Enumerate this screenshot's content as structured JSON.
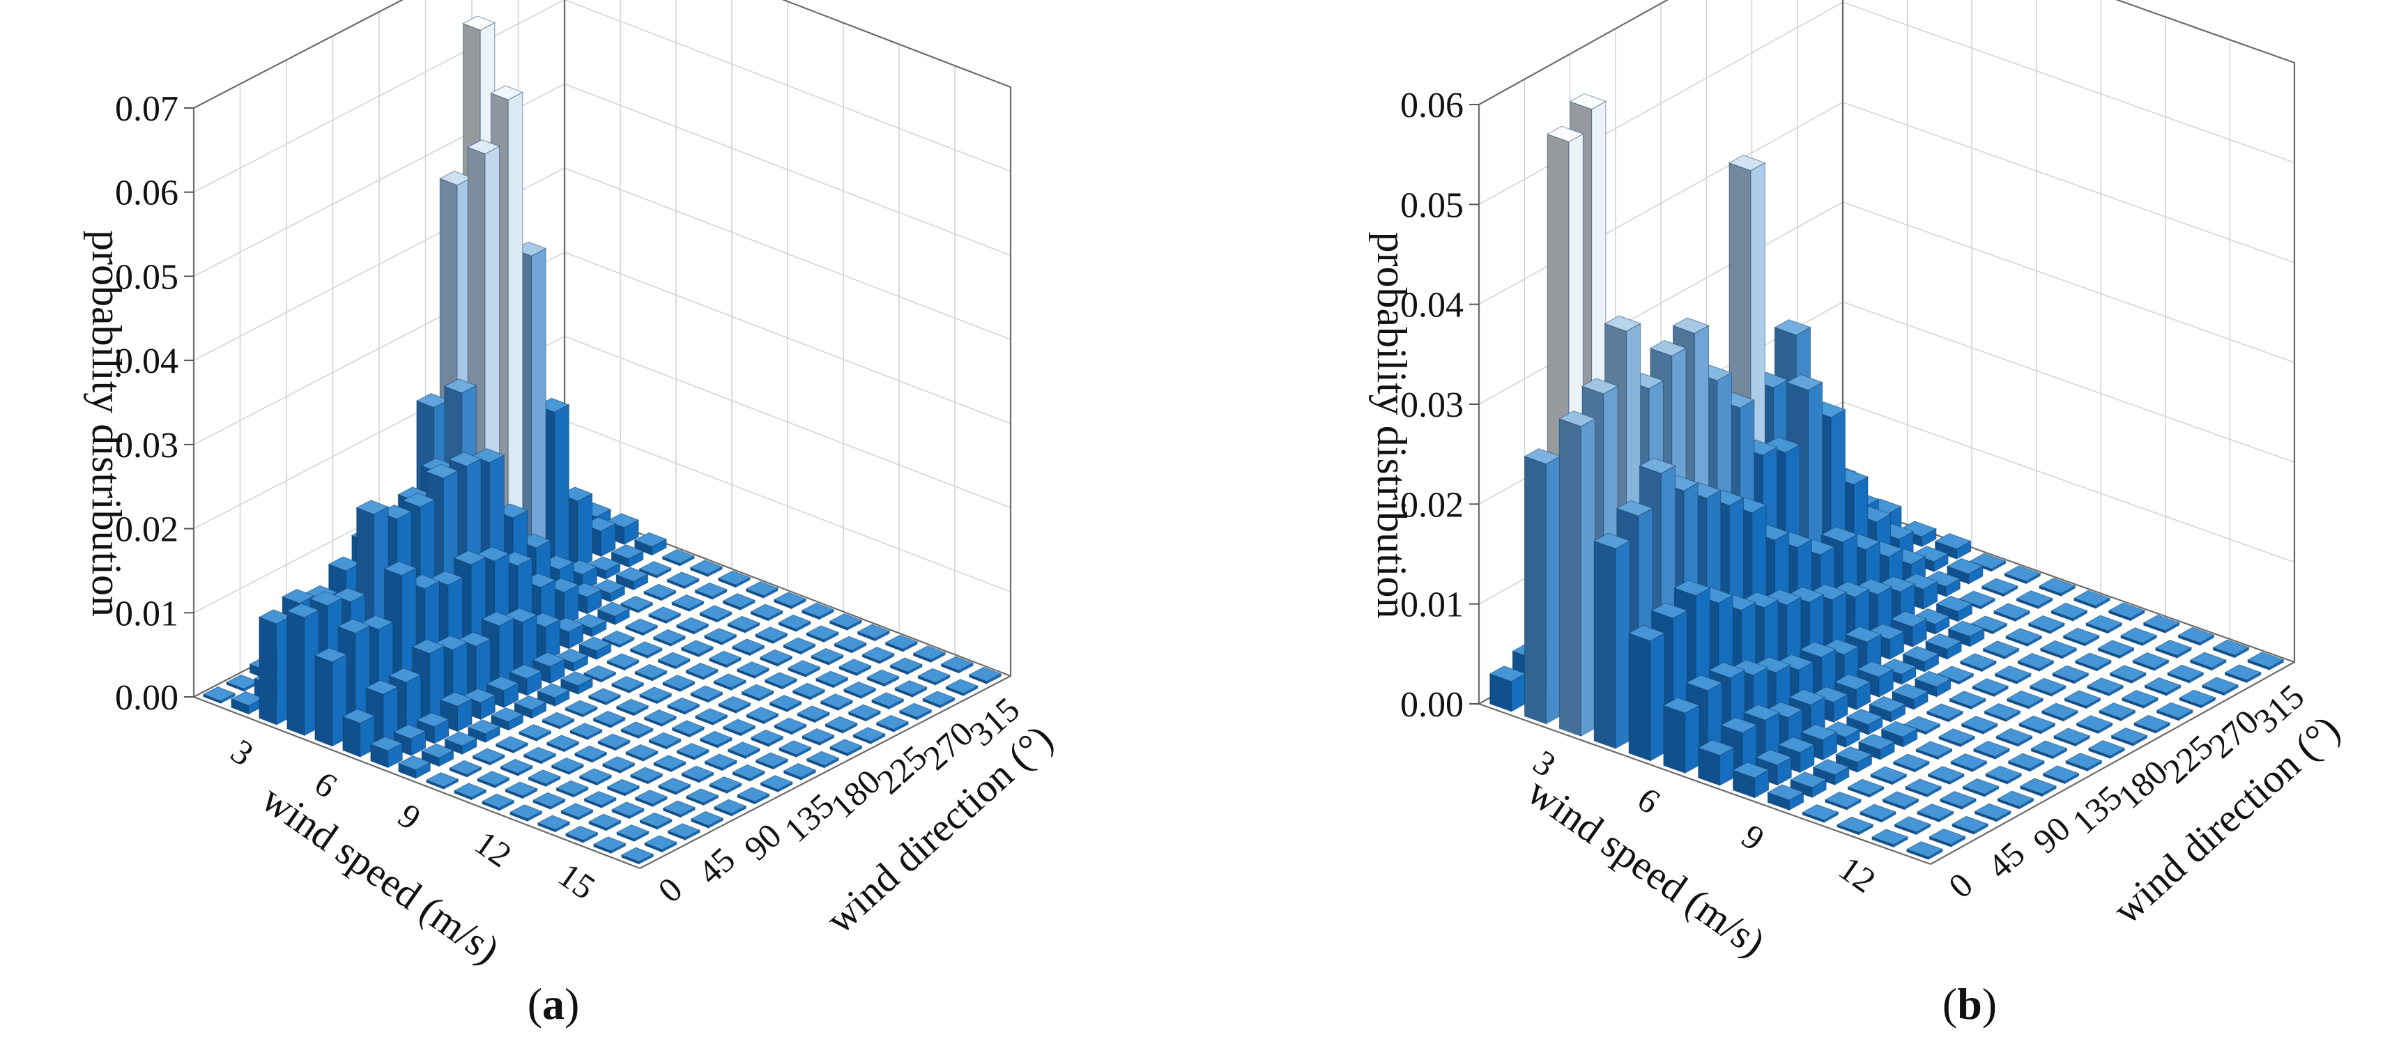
{
  "chart_data": [
    {
      "type": "bar3d",
      "panel_label": "a",
      "zlabel": "probability distribution",
      "xlabel": "wind speed (m/s)",
      "ylabel": "wind direction (°)",
      "zlim": [
        0,
        0.07
      ],
      "z_ticks": [
        "0.00",
        "0.01",
        "0.02",
        "0.03",
        "0.04",
        "0.05",
        "0.06",
        "0.07"
      ],
      "speed_ticks": [
        "3",
        "6",
        "9",
        "12",
        "15"
      ],
      "direction_ticks": [
        "0",
        "45",
        "90",
        "135",
        "180",
        "225",
        "270",
        "315"
      ],
      "speed_values": [
        1,
        2,
        3,
        4,
        5,
        6,
        7,
        8,
        9,
        10,
        11,
        12,
        13,
        14,
        15,
        16
      ],
      "direction_values": [
        0,
        22.5,
        45,
        67.5,
        90,
        112.5,
        135,
        157.5,
        180,
        202.5,
        225,
        247.5,
        270,
        292.5,
        315,
        337.5
      ],
      "grid": true,
      "values": [
        [
          0.0,
          0.0,
          0.001,
          0.001,
          0.001,
          0.001,
          0.001,
          0.002,
          0.003,
          0.004,
          0.005,
          0.006,
          0.003,
          0.002,
          0.001,
          0.001
        ],
        [
          0.001,
          0.002,
          0.003,
          0.004,
          0.005,
          0.006,
          0.008,
          0.012,
          0.025,
          0.05,
          0.067,
          0.055,
          0.02,
          0.01,
          0.004,
          0.002
        ],
        [
          0.012,
          0.013,
          0.012,
          0.014,
          0.016,
          0.017,
          0.018,
          0.02,
          0.028,
          0.055,
          0.06,
          0.04,
          0.02,
          0.008,
          0.003,
          0.002
        ],
        [
          0.014,
          0.014,
          0.013,
          0.022,
          0.02,
          0.02,
          0.022,
          0.022,
          0.021,
          0.013,
          0.008,
          0.004,
          0.002,
          0.001,
          0.001,
          0.001
        ],
        [
          0.01,
          0.012,
          0.011,
          0.016,
          0.013,
          0.012,
          0.013,
          0.012,
          0.01,
          0.006,
          0.004,
          0.002,
          0.001,
          0.001,
          0.0,
          0.0
        ],
        [
          0.004,
          0.006,
          0.006,
          0.008,
          0.007,
          0.006,
          0.007,
          0.006,
          0.004,
          0.002,
          0.001,
          0.001,
          0.0,
          0.0,
          0.0,
          0.0
        ],
        [
          0.002,
          0.002,
          0.002,
          0.003,
          0.002,
          0.002,
          0.002,
          0.002,
          0.001,
          0.001,
          0.0,
          0.0,
          0.0,
          0.0,
          0.0,
          0.0
        ],
        [
          0.001,
          0.001,
          0.001,
          0.001,
          0.001,
          0.001,
          0.001,
          0.001,
          0.0,
          0.0,
          0.0,
          0.0,
          0.0,
          0.0,
          0.0,
          0.0
        ],
        [
          0.0,
          0.0,
          0.0,
          0.0,
          0.0,
          0.0,
          0.0,
          0.0,
          0.0,
          0.0,
          0.0,
          0.0,
          0.0,
          0.0,
          0.0,
          0.0
        ],
        [
          0.0,
          0.0,
          0.0,
          0.0,
          0.0,
          0.0,
          0.0,
          0.0,
          0.0,
          0.0,
          0.0,
          0.0,
          0.0,
          0.0,
          0.0,
          0.0
        ],
        [
          0.0,
          0.0,
          0.0,
          0.0,
          0.0,
          0.0,
          0.0,
          0.0,
          0.0,
          0.0,
          0.0,
          0.0,
          0.0,
          0.0,
          0.0,
          0.0
        ],
        [
          0.0,
          0.0,
          0.0,
          0.0,
          0.0,
          0.0,
          0.0,
          0.0,
          0.0,
          0.0,
          0.0,
          0.0,
          0.0,
          0.0,
          0.0,
          0.0
        ],
        [
          0.0,
          0.0,
          0.0,
          0.0,
          0.0,
          0.0,
          0.0,
          0.0,
          0.0,
          0.0,
          0.0,
          0.0,
          0.0,
          0.0,
          0.0,
          0.0
        ],
        [
          0.0,
          0.0,
          0.0,
          0.0,
          0.0,
          0.0,
          0.0,
          0.0,
          0.0,
          0.0,
          0.0,
          0.0,
          0.0,
          0.0,
          0.0,
          0.0
        ],
        [
          0.0,
          0.0,
          0.0,
          0.0,
          0.0,
          0.0,
          0.0,
          0.0,
          0.0,
          0.0,
          0.0,
          0.0,
          0.0,
          0.0,
          0.0,
          0.0
        ],
        [
          0.0,
          0.0,
          0.0,
          0.0,
          0.0,
          0.0,
          0.0,
          0.0,
          0.0,
          0.0,
          0.0,
          0.0,
          0.0,
          0.0,
          0.0,
          0.0
        ]
      ]
    },
    {
      "type": "bar3d",
      "panel_label": "b",
      "zlabel": "probability distribution",
      "xlabel": "wind speed (m/s)",
      "ylabel": "wind direction (°)",
      "zlim": [
        0,
        0.06
      ],
      "z_ticks": [
        "0.00",
        "0.01",
        "0.02",
        "0.03",
        "0.04",
        "0.05",
        "0.06"
      ],
      "speed_ticks": [
        "3",
        "6",
        "9",
        "12"
      ],
      "direction_ticks": [
        "0",
        "45",
        "90",
        "135",
        "180",
        "225",
        "270",
        "315"
      ],
      "speed_values": [
        1,
        2,
        3,
        4,
        5,
        6,
        7,
        8,
        9,
        10,
        11,
        12,
        13
      ],
      "direction_values": [
        0,
        22.5,
        45,
        67.5,
        90,
        112.5,
        135,
        157.5,
        180,
        202.5,
        225,
        247.5,
        270,
        292.5,
        315,
        337.5
      ],
      "grid": true,
      "values": [
        [
          0.003,
          0.004,
          0.003,
          0.003,
          0.003,
          0.003,
          0.003,
          0.003,
          0.003,
          0.003,
          0.003,
          0.003,
          0.002,
          0.002,
          0.002,
          0.001
        ],
        [
          0.026,
          0.057,
          0.059,
          0.016,
          0.021,
          0.026,
          0.024,
          0.02,
          0.016,
          0.044,
          0.021,
          0.025,
          0.014,
          0.008,
          0.004,
          0.002
        ],
        [
          0.031,
          0.033,
          0.038,
          0.031,
          0.033,
          0.034,
          0.028,
          0.024,
          0.018,
          0.017,
          0.022,
          0.018,
          0.01,
          0.005,
          0.002,
          0.001
        ],
        [
          0.02,
          0.022,
          0.025,
          0.022,
          0.02,
          0.018,
          0.016,
          0.012,
          0.01,
          0.008,
          0.008,
          0.006,
          0.004,
          0.002,
          0.001,
          0.001
        ],
        [
          0.012,
          0.013,
          0.014,
          0.012,
          0.01,
          0.009,
          0.008,
          0.007,
          0.006,
          0.005,
          0.004,
          0.003,
          0.002,
          0.001,
          0.001,
          0.0
        ],
        [
          0.006,
          0.007,
          0.007,
          0.006,
          0.005,
          0.004,
          0.004,
          0.003,
          0.003,
          0.002,
          0.002,
          0.001,
          0.001,
          0.0,
          0.0,
          0.0
        ],
        [
          0.003,
          0.004,
          0.004,
          0.003,
          0.003,
          0.002,
          0.002,
          0.002,
          0.001,
          0.001,
          0.001,
          0.001,
          0.0,
          0.0,
          0.0,
          0.0
        ],
        [
          0.002,
          0.002,
          0.002,
          0.002,
          0.001,
          0.001,
          0.001,
          0.001,
          0.001,
          0.0,
          0.0,
          0.0,
          0.0,
          0.0,
          0.0,
          0.0
        ],
        [
          0.001,
          0.001,
          0.001,
          0.001,
          0.001,
          0.001,
          0.0,
          0.0,
          0.0,
          0.0,
          0.0,
          0.0,
          0.0,
          0.0,
          0.0,
          0.0
        ],
        [
          0.0,
          0.0,
          0.0,
          0.0,
          0.0,
          0.0,
          0.0,
          0.0,
          0.0,
          0.0,
          0.0,
          0.0,
          0.0,
          0.0,
          0.0,
          0.0
        ],
        [
          0.0,
          0.0,
          0.0,
          0.0,
          0.0,
          0.0,
          0.0,
          0.0,
          0.0,
          0.0,
          0.0,
          0.0,
          0.0,
          0.0,
          0.0,
          0.0
        ],
        [
          0.0,
          0.0,
          0.0,
          0.0,
          0.0,
          0.0,
          0.0,
          0.0,
          0.0,
          0.0,
          0.0,
          0.0,
          0.0,
          0.0,
          0.0,
          0.0
        ],
        [
          0.0,
          0.0,
          0.0,
          0.0,
          0.0,
          0.0,
          0.0,
          0.0,
          0.0,
          0.0,
          0.0,
          0.0,
          0.0,
          0.0,
          0.0,
          0.0
        ]
      ]
    }
  ]
}
